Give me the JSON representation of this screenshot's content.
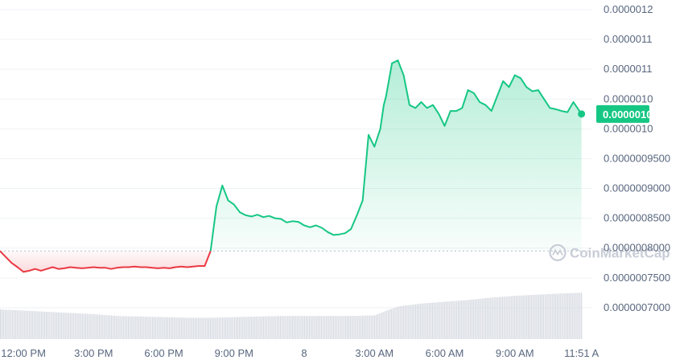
{
  "chart_data": {
    "type": "line",
    "title": "",
    "xlabel": "",
    "ylabel": "",
    "y_ticks": [
      "0.0000012",
      "0.0000011",
      "0.0000011",
      "0.0000010",
      "0.0000010",
      "0.0000009500",
      "0.0000009000",
      "0.0000008500",
      "0.0000008000",
      "0.0000007500",
      "0.0000007000"
    ],
    "y_tick_values": [
      1.2e-06,
      1.15e-06,
      1.1e-06,
      1.05e-06,
      1e-06,
      9.5e-07,
      9e-07,
      8.5e-07,
      8e-07,
      7.5e-07,
      7e-07
    ],
    "ylim": [
      6.5e-07,
      1.2e-06
    ],
    "x_ticks": [
      "12:00 PM",
      "3:00 PM",
      "6:00 PM",
      "9:00 PM",
      "8",
      "3:00 AM",
      "6:00 AM",
      "9:00 AM",
      "11:51 A"
    ],
    "x_tick_hours": [
      0,
      3,
      6,
      9,
      12,
      15,
      18,
      21,
      23.85
    ],
    "xlim": [
      -1,
      24
    ],
    "reference_price": 7.95e-07,
    "current_price_label": "0.0000010",
    "current_price": 1.025e-06,
    "colors": {
      "up": "#16c784",
      "down": "#ea3943",
      "volume": "#d5d9e0",
      "badge": "#16c784"
    },
    "watermark": "CoinMarketCap",
    "series": [
      {
        "x": [
          -1,
          -0.75,
          -0.5,
          -0.25,
          0,
          0.25,
          0.5,
          0.75,
          1,
          1.25,
          1.5,
          1.75,
          2,
          2.25,
          2.5,
          2.75,
          3,
          3.25,
          3.5,
          3.75,
          4,
          4.25,
          4.5,
          4.75,
          5,
          5.25,
          5.5,
          5.75,
          6,
          6.25,
          6.5,
          6.75,
          7,
          7.25,
          7.5,
          7.75,
          8,
          8.25,
          8.5,
          8.75,
          9,
          9.25,
          9.5,
          9.75,
          10,
          10.25,
          10.5,
          10.75,
          11,
          11.25,
          11.5,
          11.75,
          12,
          12.25,
          12.5,
          12.75,
          13,
          13.25,
          13.5,
          13.75,
          14,
          14.25,
          14.5,
          14.75,
          15,
          15.25,
          15.4,
          15.5,
          15.75,
          16,
          16.25,
          16.5,
          16.75,
          17,
          17.25,
          17.5,
          17.75,
          18,
          18.25,
          18.5,
          18.75,
          19,
          19.25,
          19.5,
          19.75,
          20,
          20.25,
          20.5,
          20.75,
          21,
          21.25,
          21.5,
          21.75,
          22,
          22.25,
          22.5,
          22.75,
          23,
          23.25,
          23.5,
          23.85
        ],
        "y": [
          7.95e-07,
          7.85e-07,
          7.75e-07,
          7.68e-07,
          7.6e-07,
          7.62e-07,
          7.65e-07,
          7.62e-07,
          7.65e-07,
          7.68e-07,
          7.65e-07,
          7.66e-07,
          7.68e-07,
          7.67e-07,
          7.66e-07,
          7.67e-07,
          7.68e-07,
          7.67e-07,
          7.67e-07,
          7.65e-07,
          7.67e-07,
          7.68e-07,
          7.68e-07,
          7.69e-07,
          7.68e-07,
          7.68e-07,
          7.67e-07,
          7.66e-07,
          7.67e-07,
          7.66e-07,
          7.68e-07,
          7.69e-07,
          7.68e-07,
          7.69e-07,
          7.7e-07,
          7.7e-07,
          7.95e-07,
          8.7e-07,
          9.05e-07,
          8.8e-07,
          8.73e-07,
          8.6e-07,
          8.55e-07,
          8.53e-07,
          8.56e-07,
          8.52e-07,
          8.54e-07,
          8.5e-07,
          8.49e-07,
          8.43e-07,
          8.45e-07,
          8.44e-07,
          8.38e-07,
          8.35e-07,
          8.38e-07,
          8.34e-07,
          8.27e-07,
          8.22e-07,
          8.23e-07,
          8.25e-07,
          8.32e-07,
          8.55e-07,
          8.8e-07,
          9.9e-07,
          9.7e-07,
          1e-06,
          1.04e-06,
          1.055e-06,
          1.11e-06,
          1.115e-06,
          1.09e-06,
          1.04e-06,
          1.035e-06,
          1.045e-06,
          1.035e-06,
          1.04e-06,
          1.025e-06,
          1.005e-06,
          1.03e-06,
          1.03e-06,
          1.035e-06,
          1.065e-06,
          1.06e-06,
          1.045e-06,
          1.04e-06,
          1.03e-06,
          1.055e-06,
          1.08e-06,
          1.07e-06,
          1.09e-06,
          1.085e-06,
          1.07e-06,
          1.063e-06,
          1.065e-06,
          1.05e-06,
          1.035e-06,
          1.033e-06,
          1.03e-06,
          1.028e-06,
          1.045e-06,
          1.025e-06
        ]
      }
    ],
    "volume": {
      "x": [
        -1,
        0,
        1,
        2,
        3,
        4,
        5,
        6,
        7,
        8,
        9,
        10,
        11,
        12,
        13,
        14,
        15,
        15.5,
        16,
        17,
        18,
        19,
        20,
        21,
        22,
        23,
        23.85
      ],
      "values": [
        50,
        48,
        46,
        44,
        42,
        39,
        38,
        37,
        36,
        36,
        37,
        38,
        39,
        39,
        39,
        39,
        40,
        48,
        55,
        60,
        63,
        66,
        70,
        73,
        75,
        77,
        78
      ]
    }
  }
}
